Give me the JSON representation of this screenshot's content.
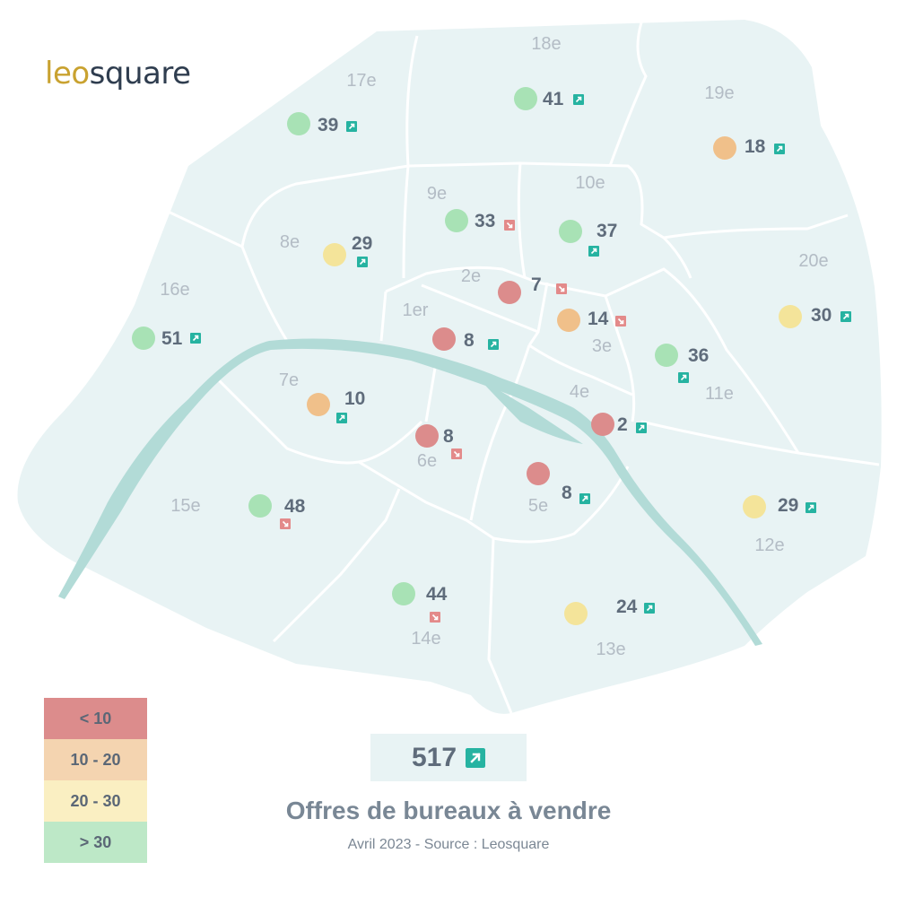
{
  "brand": {
    "part1": "leo",
    "part2": "square"
  },
  "colors": {
    "red": "#dc8c8c",
    "orange": "#f0c08a",
    "yellow": "#f4e49a",
    "green": "#a8e2b5",
    "arrow_up": "#26b3a1",
    "arrow_down": "#e38a8a",
    "map_fill": "#e8f3f4",
    "river": "#b2dbd7"
  },
  "legend": [
    {
      "label": "< 10",
      "color": "#dc8c8c"
    },
    {
      "label": "10 - 20",
      "color": "#f4d4b0"
    },
    {
      "label": "20 - 30",
      "color": "#faefc2"
    },
    {
      "label": "> 30",
      "color": "#bde8c7"
    }
  ],
  "total": {
    "value": "517",
    "trend": "up"
  },
  "title": "Offres de bureaux à vendre",
  "subtitle": "Avril 2023 - Source : Leosquare",
  "arrondissements": [
    {
      "name": "1er",
      "value": 8,
      "trend": "up",
      "category": "red"
    },
    {
      "name": "2e",
      "value": 7,
      "trend": "down",
      "category": "red"
    },
    {
      "name": "3e",
      "value": 14,
      "trend": "down",
      "category": "orange"
    },
    {
      "name": "4e",
      "value": 2,
      "trend": "up",
      "category": "red"
    },
    {
      "name": "5e",
      "value": 8,
      "trend": "up",
      "category": "red"
    },
    {
      "name": "6e",
      "value": 8,
      "trend": "down",
      "category": "red"
    },
    {
      "name": "7e",
      "value": 10,
      "trend": "up",
      "category": "orange"
    },
    {
      "name": "8e",
      "value": 29,
      "trend": "up",
      "category": "yellow"
    },
    {
      "name": "9e",
      "value": 33,
      "trend": "down",
      "category": "green"
    },
    {
      "name": "10e",
      "value": 37,
      "trend": "up",
      "category": "green"
    },
    {
      "name": "11e",
      "value": 36,
      "trend": "up",
      "category": "green"
    },
    {
      "name": "12e",
      "value": 29,
      "trend": "up",
      "category": "yellow"
    },
    {
      "name": "13e",
      "value": 24,
      "trend": "up",
      "category": "yellow"
    },
    {
      "name": "14e",
      "value": 44,
      "trend": "down",
      "category": "green"
    },
    {
      "name": "15e",
      "value": 48,
      "trend": "down",
      "category": "green"
    },
    {
      "name": "16e",
      "value": 51,
      "trend": "up",
      "category": "green"
    },
    {
      "name": "17e",
      "value": 39,
      "trend": "up",
      "category": "green"
    },
    {
      "name": "18e",
      "value": 41,
      "trend": "up",
      "category": "green"
    },
    {
      "name": "19e",
      "value": 18,
      "trend": "up",
      "category": "orange"
    },
    {
      "name": "20e",
      "value": 30,
      "trend": "up",
      "category": "yellow"
    }
  ]
}
